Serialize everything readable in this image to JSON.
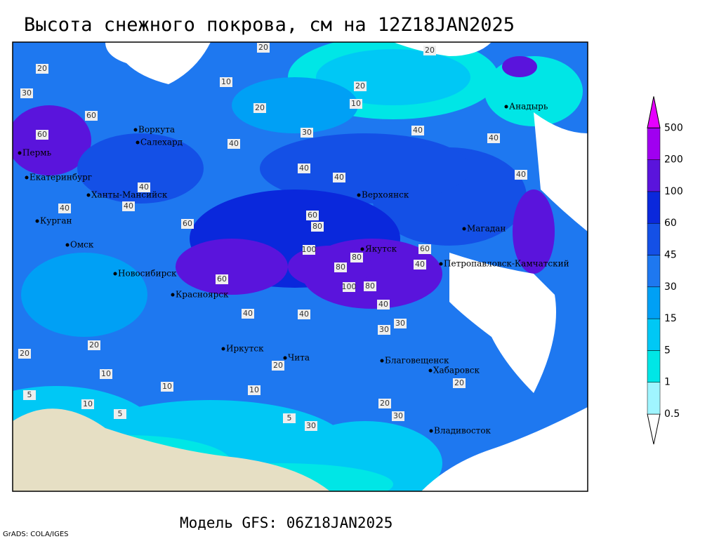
{
  "header": {
    "title": "Высота снежного покрова, см на 12Z18JAN2025"
  },
  "footer": {
    "model": "Модель GFS: 06Z18JAN2025",
    "credit": "GrADS: COLA/IGES"
  },
  "legend": {
    "levels": [
      0.5,
      1,
      5,
      15,
      30,
      45,
      60,
      100,
      200,
      500
    ],
    "colors": [
      "#ffffff",
      "#a0f5ff",
      "#00e6e6",
      "#00c8f5",
      "#00a0f5",
      "#1e78f0",
      "#1450e6",
      "#0a28dc",
      "#5a14dc",
      "#a000f0",
      "#e600ff"
    ]
  },
  "map": {
    "cities": [
      "Воркута",
      "Салехард",
      "Пермь",
      "Екатеринбург",
      "Ханты-Мансийск",
      "Курган",
      "Омск",
      "Новосибирск",
      "Красноярск",
      "Иркутск",
      "Чита",
      "Верхоянск",
      "Якутск",
      "Магадан",
      "Анадырь",
      "Петропавловск-Камчатский",
      "Благовещенск",
      "Хабаровск",
      "Владивосток"
    ],
    "contour_labels": [
      "20",
      "20",
      "20",
      "30",
      "10",
      "20",
      "10",
      "20",
      "30",
      "60",
      "60",
      "40",
      "40",
      "40",
      "40",
      "40",
      "40",
      "40",
      "40",
      "40",
      "60",
      "60",
      "80",
      "100",
      "80",
      "80",
      "100",
      "80",
      "60",
      "40",
      "40",
      "40",
      "30",
      "30",
      "20",
      "20",
      "10",
      "10",
      "5",
      "5",
      "5",
      "10",
      "20",
      "30",
      "20",
      "10",
      "30",
      "40",
      "60",
      "20"
    ]
  }
}
